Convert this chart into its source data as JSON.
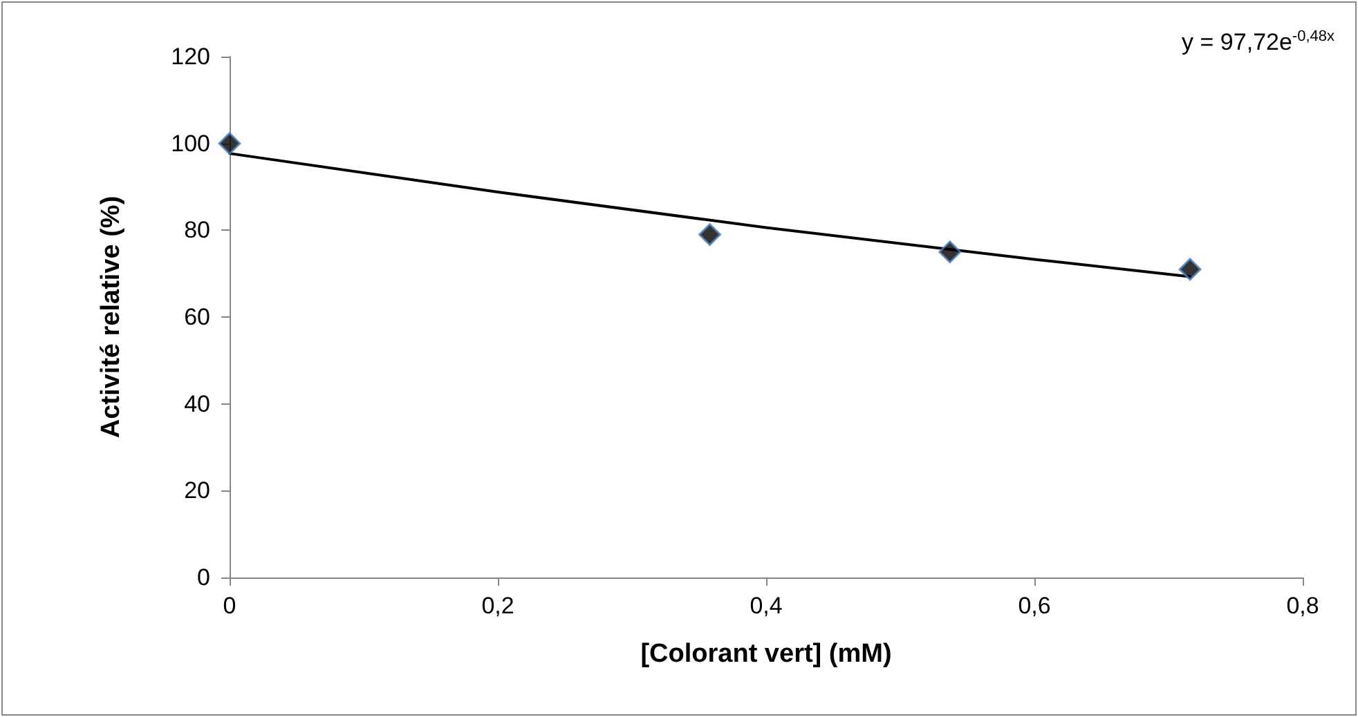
{
  "chart_data": {
    "type": "scatter",
    "xlabel": "[Colorant vert] (mM)",
    "ylabel": "Activité relative (%)",
    "annotations": [
      "y = 97,72e$^{-0,48x}$"
    ],
    "series": [
      {
        "color": "#000000",
        "marker": "diamond",
        "x": [
          0,
          0.358,
          0.537,
          0.716
        ],
        "values": [
          100,
          79,
          75,
          71
        ]
      },
      {
        "type": "line",
        "color": "#000000",
        "marker": "none",
        "x": [
          0,
          0.2,
          0.4,
          0.6,
          0.716
        ],
        "values": [
          97.7,
          88.8,
          80.6,
          73.3,
          69.3
        ]
      }
    ],
    "xlim": [
      0,
      0.8
    ],
    "xticks": [
      {
        "value": 0,
        "label": "0"
      },
      {
        "value": 0.2,
        "label": "0,2"
      },
      {
        "value": 0.4,
        "label": "0,4"
      },
      {
        "value": 0.6,
        "label": "0,6"
      },
      {
        "value": 0.8,
        "label": "0,8"
      }
    ],
    "ylim": [
      0,
      120
    ],
    "yticks": [
      0,
      20,
      40,
      60,
      80,
      100,
      120
    ],
    "grid": false
  }
}
